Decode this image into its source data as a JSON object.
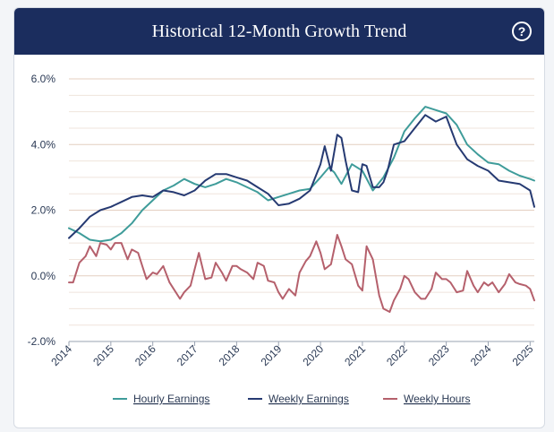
{
  "title": "Historical 12-Month Growth Trend",
  "help_label": "?",
  "chart_data": {
    "type": "line",
    "title": "Historical 12-Month Growth Trend",
    "xlabel": "",
    "ylabel": "",
    "xlim": [
      2014.0,
      2025.1
    ],
    "ylim": [
      -2.0,
      6.0
    ],
    "y_ticks": [
      6.0,
      4.0,
      2.0,
      0.0,
      -2.0
    ],
    "y_tick_labels": [
      "6.0%",
      "4.0%",
      "2.0%",
      "0.0%",
      "-2.0%"
    ],
    "x_ticks": [
      2014,
      2015,
      2016,
      2017,
      2018,
      2019,
      2020,
      2021,
      2022,
      2023,
      2024,
      2025
    ],
    "x_tick_labels": [
      "2014",
      "2015",
      "2016",
      "2017",
      "2018",
      "2019",
      "2020",
      "2021",
      "2022",
      "2023",
      "2024",
      "2025"
    ],
    "grid": "horizontal",
    "legend_position": "bottom",
    "series": [
      {
        "name": "Hourly Earnings",
        "color": "#3f9c9a",
        "x": [
          2014.0,
          2014.25,
          2014.5,
          2014.75,
          2015.0,
          2015.25,
          2015.5,
          2015.75,
          2016.0,
          2016.25,
          2016.5,
          2016.75,
          2017.0,
          2017.25,
          2017.5,
          2017.75,
          2018.0,
          2018.25,
          2018.5,
          2018.75,
          2019.0,
          2019.25,
          2019.5,
          2019.75,
          2020.0,
          2020.2,
          2020.33,
          2020.5,
          2020.75,
          2021.0,
          2021.25,
          2021.5,
          2021.75,
          2022.0,
          2022.25,
          2022.5,
          2022.75,
          2023.0,
          2023.25,
          2023.5,
          2023.75,
          2024.0,
          2024.25,
          2024.5,
          2024.75,
          2025.0,
          2025.1
        ],
        "y": [
          1.45,
          1.3,
          1.1,
          1.05,
          1.1,
          1.3,
          1.6,
          2.0,
          2.3,
          2.6,
          2.75,
          2.95,
          2.8,
          2.7,
          2.8,
          2.95,
          2.85,
          2.7,
          2.55,
          2.3,
          2.4,
          2.5,
          2.6,
          2.65,
          3.0,
          3.3,
          3.15,
          2.8,
          3.4,
          3.2,
          2.6,
          3.0,
          3.6,
          4.4,
          4.8,
          5.15,
          5.05,
          4.95,
          4.6,
          4.0,
          3.7,
          3.45,
          3.4,
          3.2,
          3.05,
          2.95,
          2.9
        ]
      },
      {
        "name": "Weekly Earnings",
        "color": "#263a72",
        "x": [
          2014.0,
          2014.25,
          2014.5,
          2014.75,
          2015.0,
          2015.25,
          2015.5,
          2015.75,
          2016.0,
          2016.25,
          2016.5,
          2016.75,
          2017.0,
          2017.25,
          2017.5,
          2017.75,
          2018.0,
          2018.25,
          2018.5,
          2018.75,
          2019.0,
          2019.25,
          2019.5,
          2019.75,
          2020.0,
          2020.1,
          2020.25,
          2020.4,
          2020.5,
          2020.6,
          2020.75,
          2020.9,
          2021.0,
          2021.1,
          2021.25,
          2021.4,
          2021.5,
          2021.6,
          2021.75,
          2022.0,
          2022.25,
          2022.5,
          2022.75,
          2023.0,
          2023.25,
          2023.5,
          2023.75,
          2024.0,
          2024.25,
          2024.5,
          2024.75,
          2025.0,
          2025.1
        ],
        "y": [
          1.15,
          1.45,
          1.8,
          2.0,
          2.1,
          2.25,
          2.4,
          2.45,
          2.4,
          2.6,
          2.55,
          2.45,
          2.6,
          2.9,
          3.1,
          3.1,
          3.0,
          2.9,
          2.7,
          2.5,
          2.15,
          2.2,
          2.35,
          2.6,
          3.4,
          3.95,
          3.2,
          4.3,
          4.2,
          3.5,
          2.6,
          2.55,
          3.4,
          3.35,
          2.7,
          2.7,
          2.85,
          3.2,
          4.0,
          4.1,
          4.5,
          4.9,
          4.7,
          4.85,
          4.0,
          3.55,
          3.35,
          3.2,
          2.9,
          2.85,
          2.8,
          2.6,
          2.1
        ]
      },
      {
        "name": "Weekly Hours",
        "color": "#b5606c",
        "x": [
          2014.0,
          2014.1,
          2014.25,
          2014.4,
          2014.5,
          2014.65,
          2014.75,
          2014.9,
          2015.0,
          2015.1,
          2015.25,
          2015.4,
          2015.5,
          2015.65,
          2015.75,
          2015.85,
          2016.0,
          2016.1,
          2016.25,
          2016.4,
          2016.5,
          2016.65,
          2016.75,
          2016.9,
          2017.0,
          2017.1,
          2017.25,
          2017.4,
          2017.5,
          2017.65,
          2017.75,
          2017.9,
          2018.0,
          2018.1,
          2018.25,
          2018.4,
          2018.5,
          2018.65,
          2018.75,
          2018.9,
          2019.0,
          2019.1,
          2019.25,
          2019.4,
          2019.5,
          2019.65,
          2019.75,
          2019.9,
          2020.0,
          2020.1,
          2020.25,
          2020.4,
          2020.5,
          2020.6,
          2020.75,
          2020.9,
          2021.0,
          2021.1,
          2021.25,
          2021.4,
          2021.5,
          2021.65,
          2021.75,
          2021.9,
          2022.0,
          2022.1,
          2022.25,
          2022.4,
          2022.5,
          2022.65,
          2022.75,
          2022.9,
          2023.0,
          2023.1,
          2023.25,
          2023.4,
          2023.5,
          2023.65,
          2023.75,
          2023.9,
          2024.0,
          2024.1,
          2024.25,
          2024.4,
          2024.5,
          2024.65,
          2024.75,
          2024.9,
          2025.0,
          2025.1
        ],
        "y": [
          -0.2,
          -0.2,
          0.4,
          0.6,
          0.9,
          0.6,
          1.0,
          0.95,
          0.8,
          1.0,
          1.0,
          0.5,
          0.8,
          0.7,
          0.3,
          -0.1,
          0.1,
          0.05,
          0.3,
          -0.2,
          -0.4,
          -0.7,
          -0.5,
          -0.3,
          0.2,
          0.7,
          -0.1,
          -0.05,
          0.4,
          0.1,
          -0.15,
          0.3,
          0.3,
          0.2,
          0.1,
          -0.1,
          0.4,
          0.3,
          -0.15,
          -0.2,
          -0.5,
          -0.7,
          -0.4,
          -0.6,
          0.1,
          0.45,
          0.6,
          1.05,
          0.7,
          0.2,
          0.35,
          1.25,
          0.9,
          0.5,
          0.35,
          -0.3,
          -0.45,
          0.9,
          0.5,
          -0.6,
          -1.0,
          -1.1,
          -0.75,
          -0.4,
          0.0,
          -0.1,
          -0.5,
          -0.7,
          -0.7,
          -0.4,
          0.1,
          -0.1,
          -0.1,
          -0.2,
          -0.5,
          -0.45,
          0.15,
          -0.3,
          -0.5,
          -0.2,
          -0.3,
          -0.2,
          -0.5,
          -0.25,
          0.05,
          -0.2,
          -0.25,
          -0.3,
          -0.4,
          -0.75
        ]
      }
    ]
  }
}
